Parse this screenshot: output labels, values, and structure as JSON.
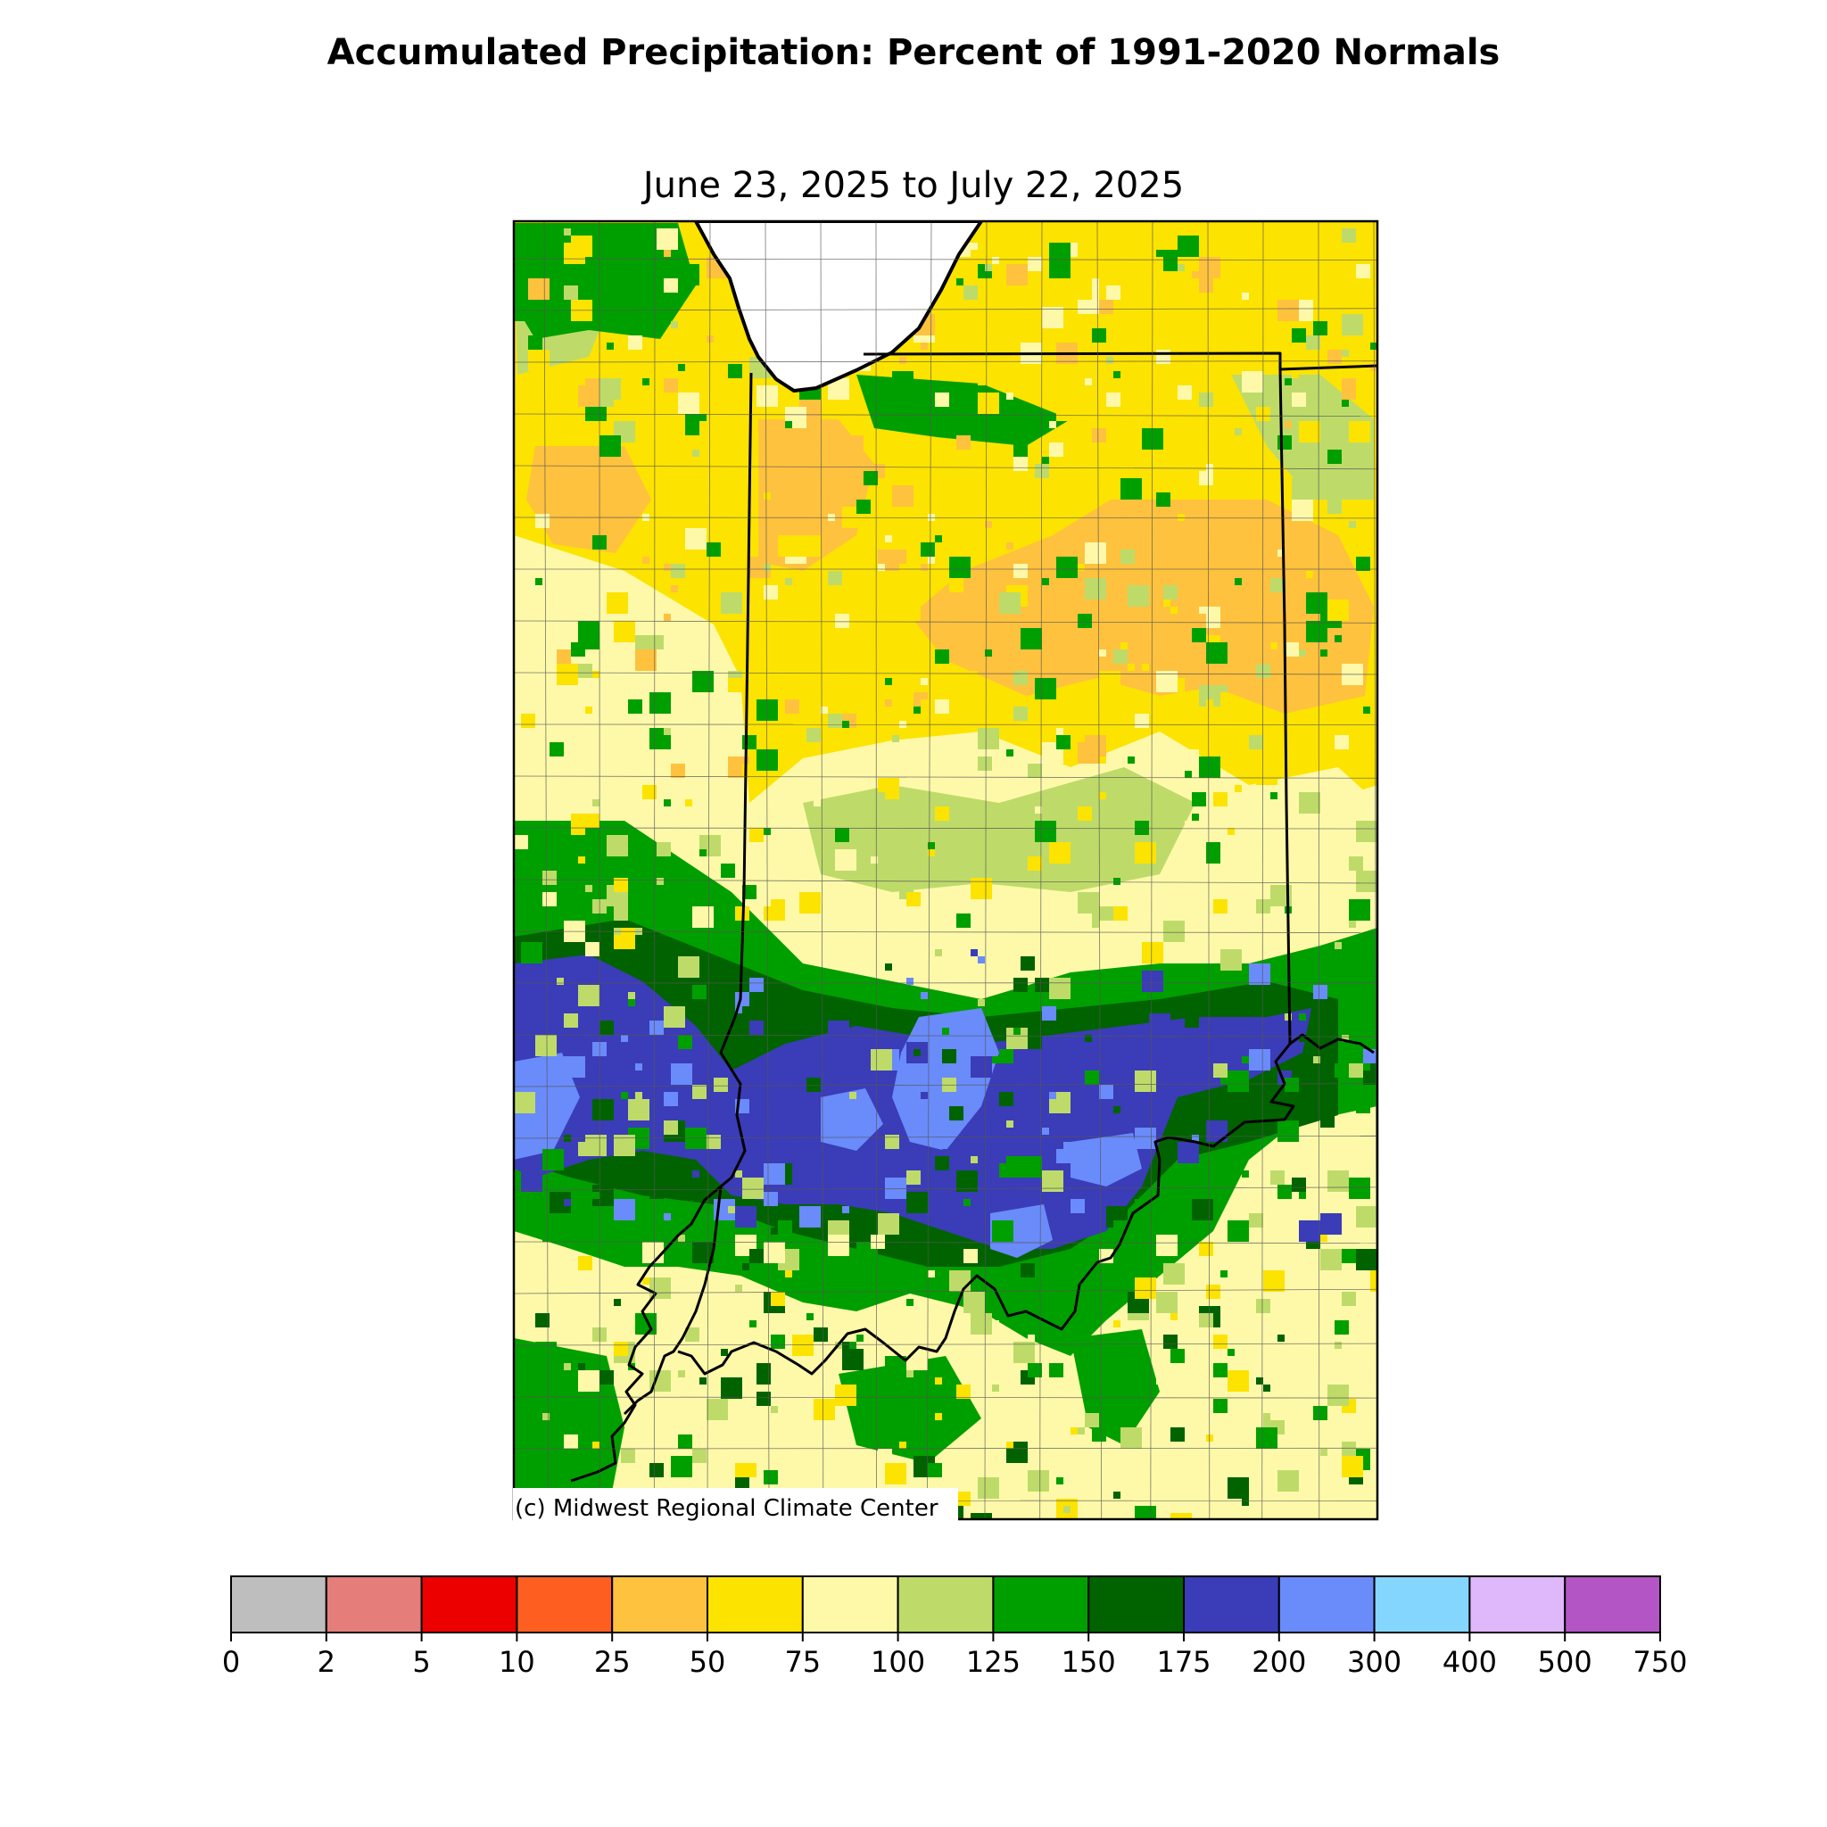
{
  "title": "Accumulated Precipitation: Percent of 1991-2020 Normals",
  "subtitle": "June 23, 2025 to July 22, 2025",
  "credit": "(c) Midwest Regional Climate Center",
  "legend": {
    "bins": [
      {
        "from": "0",
        "to": "2",
        "color": "#bebebe"
      },
      {
        "from": "2",
        "to": "5",
        "color": "#e57e7a"
      },
      {
        "from": "5",
        "to": "10",
        "color": "#ec0000"
      },
      {
        "from": "10",
        "to": "25",
        "color": "#fe5f21"
      },
      {
        "from": "25",
        "to": "50",
        "color": "#fec23e"
      },
      {
        "from": "50",
        "to": "75",
        "color": "#fde300"
      },
      {
        "from": "75",
        "to": "100",
        "color": "#fef9a9"
      },
      {
        "from": "100",
        "to": "125",
        "color": "#bedb6a"
      },
      {
        "from": "125",
        "to": "150",
        "color": "#009f00"
      },
      {
        "from": "150",
        "to": "175",
        "color": "#006300"
      },
      {
        "from": "175",
        "to": "200",
        "color": "#3b3cb7"
      },
      {
        "from": "200",
        "to": "300",
        "color": "#6a8bfa"
      },
      {
        "from": "300",
        "to": "400",
        "color": "#85d6fe"
      },
      {
        "from": "400",
        "to": "500",
        "color": "#deb8fb"
      },
      {
        "from": "500",
        "to": "750",
        "color": "#b455c6"
      }
    ],
    "ticks": [
      "0",
      "2",
      "5",
      "10",
      "25",
      "50",
      "75",
      "100",
      "125",
      "150",
      "175",
      "200",
      "300",
      "400",
      "500",
      "750"
    ]
  },
  "map_regions": [
    {
      "region": "far north (Lake Michigan shore, NE Indiana, S Michigan)",
      "category": "50-100"
    },
    {
      "region": "northeast Indiana / northwest Ohio",
      "category": "25-75"
    },
    {
      "region": "northwest Indiana / eastern Illinois",
      "category": "50-100"
    },
    {
      "region": "central Indiana",
      "category": "75-125"
    },
    {
      "region": "south-central band (S Illinois, S Indiana, SW Ohio)",
      "category": "150-300"
    },
    {
      "region": "Ohio River valley / Kentucky",
      "category": "75-150"
    }
  ]
}
